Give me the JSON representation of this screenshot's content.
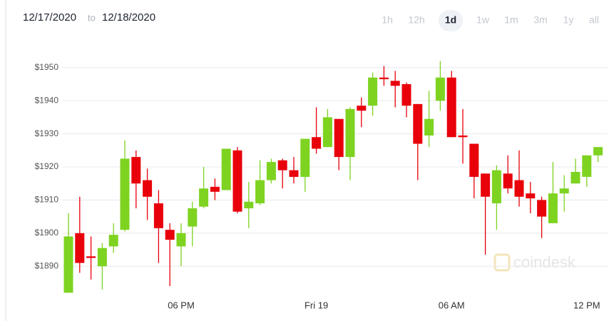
{
  "header": {
    "from": "12/17/2020",
    "sep": "to",
    "to": "12/18/2020",
    "buttons": [
      "1h",
      "12h",
      "1d",
      "1w",
      "1m",
      "3m",
      "1y",
      "all"
    ],
    "selected": "1d"
  },
  "watermark": "coindesk",
  "chart_data": {
    "type": "candlestick",
    "categories": [
      null,
      null,
      null,
      null,
      null,
      null,
      null,
      null,
      null,
      null,
      "06 PM",
      null,
      null,
      null,
      null,
      null,
      null,
      null,
      null,
      null,
      null,
      null,
      "Fri 19",
      null,
      null,
      null,
      null,
      null,
      null,
      null,
      null,
      null,
      null,
      null,
      "06 AM",
      null,
      null,
      null,
      null,
      null,
      null,
      null,
      null,
      null,
      null,
      null,
      "12 PM",
      null
    ],
    "open": [
      1882,
      1900,
      1893,
      1890,
      1896,
      1901,
      1923,
      1916,
      1909,
      1901,
      1896,
      1902,
      1908,
      1914,
      1913,
      1925,
      1907.5,
      1909,
      1916,
      1922,
      1919,
      1917,
      1929,
      1926,
      1934.5,
      1923,
      1938.5,
      1938.5,
      1947,
      1946,
      1945,
      1939,
      1929.5,
      1940,
      1947,
      1929.5,
      1927,
      1918,
      1909,
      1918,
      1916,
      1912,
      1910,
      1903,
      1912,
      1915,
      1917,
      1923.5
    ],
    "high": [
      1906,
      1911,
      1899,
      1897,
      1903,
      1928,
      1925,
      1919.5,
      1913,
      1903,
      1903,
      1909.5,
      1920,
      1916.5,
      1925.5,
      1926,
      1915.5,
      1922,
      1922.5,
      1922.5,
      1923,
      1928.5,
      1938,
      1937.5,
      1934.5,
      1938,
      1941,
      1948.5,
      1950.5,
      1949,
      1945.5,
      1939,
      1943,
      1952,
      1949,
      1937.5,
      1927,
      1918,
      1920.5,
      1923.5,
      1925,
      1915.5,
      1911,
      1921.5,
      1917.5,
      1922.5,
      1923.5,
      1926
    ],
    "low": [
      1882,
      1888,
      1886,
      1883,
      1894,
      1900.5,
      1907.5,
      1904,
      1891,
      1884,
      1890,
      1896,
      1907.5,
      1910,
      1913,
      1906,
      1901.5,
      1908.5,
      1915,
      1913.5,
      1915,
      1912.5,
      1924,
      1926,
      1919,
      1916,
      1932,
      1935.5,
      1944.5,
      1938,
      1935,
      1916,
      1926,
      1937,
      1929,
      1921,
      1910.5,
      1893.5,
      1901,
      1912,
      1908,
      1906,
      1898.5,
      1903,
      1906.5,
      1915,
      1914,
      1921.5
    ],
    "close": [
      1899,
      1891,
      1892.5,
      1895.5,
      1899.5,
      1922.5,
      1915,
      1911,
      1901.5,
      1898,
      1900,
      1907.5,
      1913.5,
      1912.5,
      1925.5,
      1906.5,
      1909.5,
      1916,
      1921.5,
      1919,
      1917,
      1928.5,
      1925.5,
      1935,
      1923,
      1937.5,
      1937,
      1947,
      1946.5,
      1944.5,
      1938.5,
      1927,
      1934.5,
      1947,
      1929,
      1929,
      1917,
      1911,
      1919,
      1913.5,
      1911,
      1910.5,
      1905,
      1912,
      1913.5,
      1918.5,
      1923.5,
      1926
    ],
    "up_color": "#7ed321",
    "down_color": "#e8000b",
    "ylim": [
      1881,
      1957.5
    ],
    "yticks": [
      {
        "value": 1890,
        "label": "$1890"
      },
      {
        "value": 1900,
        "label": "$1900"
      },
      {
        "value": 1910,
        "label": "$1910"
      },
      {
        "value": 1920,
        "label": "$1920"
      },
      {
        "value": 1930,
        "label": "$1930"
      },
      {
        "value": 1940,
        "label": "$1940"
      },
      {
        "value": 1950,
        "label": "$1950"
      }
    ],
    "grid": true
  }
}
